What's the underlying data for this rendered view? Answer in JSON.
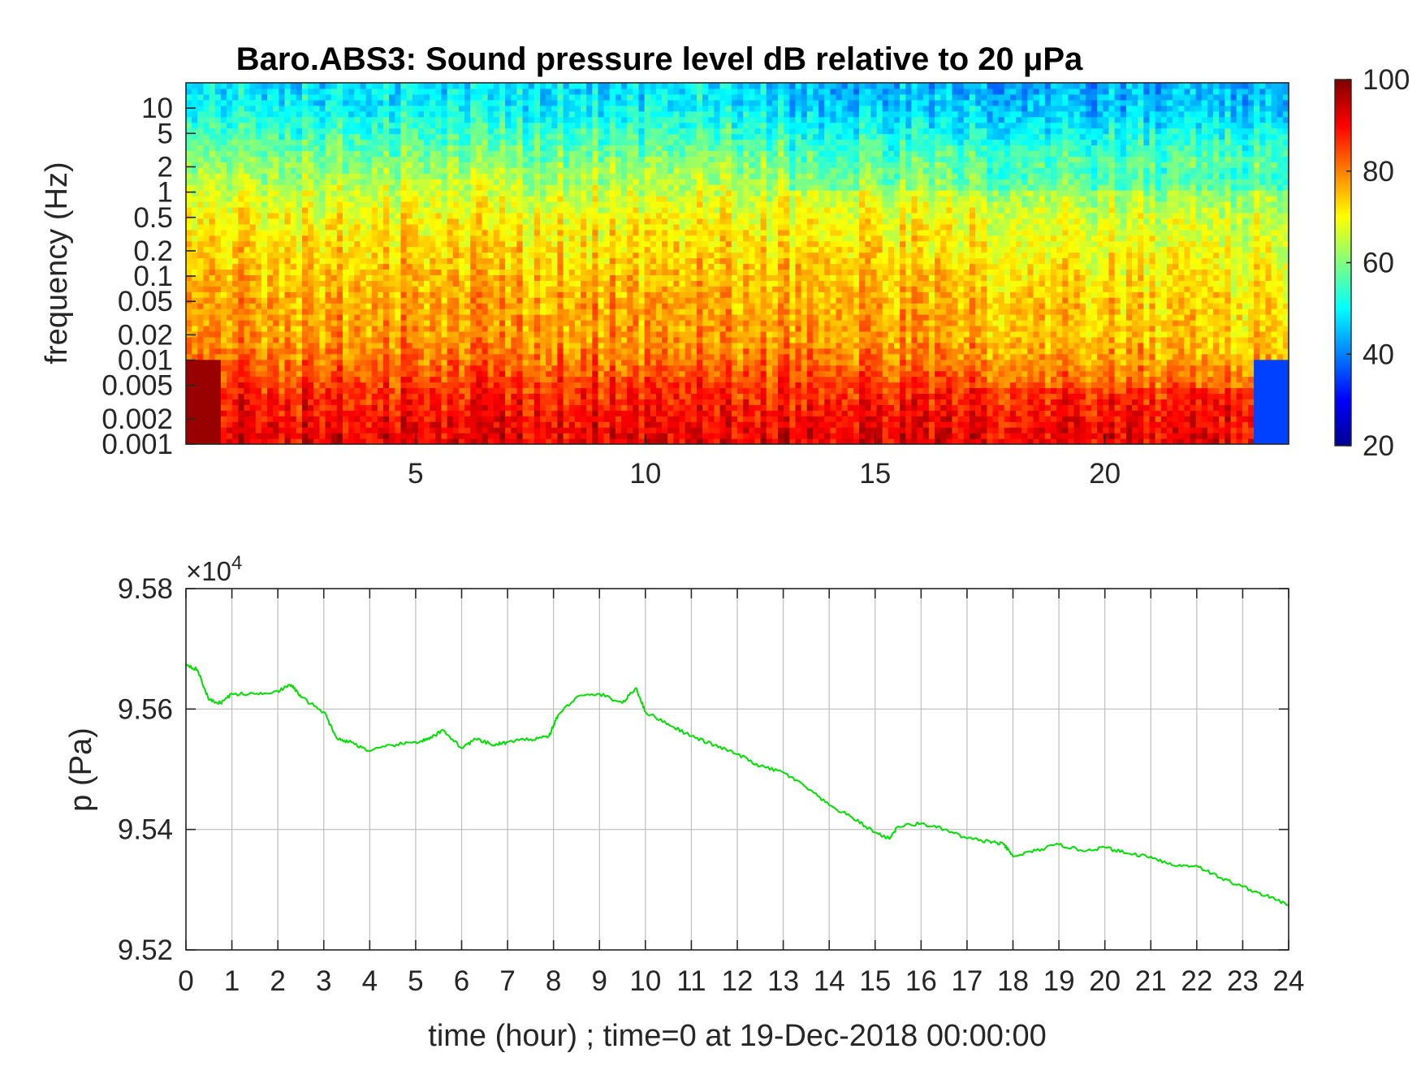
{
  "chart_data": [
    {
      "type": "heatmap",
      "title": "Baro.ABS3: Sound pressure level dB relative to 20 μPa",
      "ylabel": "frequency (Hz)",
      "xlabel": "",
      "y_scale": "log",
      "ylim": [
        0.001,
        20
      ],
      "xlim": [
        0,
        24
      ],
      "yticks": [
        0.001,
        0.002,
        0.005,
        0.01,
        0.02,
        0.05,
        0.1,
        0.2,
        0.5,
        1,
        2,
        5,
        10
      ],
      "yticklabels": [
        "0.001",
        "0.002",
        "0.005",
        "0.01",
        "0.02",
        "0.05",
        "0.1",
        "0.2",
        "0.5",
        "1",
        "2",
        "5",
        "10"
      ],
      "xticks": [
        5,
        10,
        15,
        20
      ],
      "xticklabels": [
        "5",
        "10",
        "15",
        "20"
      ],
      "colormap": "jet",
      "colorbar": {
        "range": [
          20,
          100
        ],
        "ticks": [
          20,
          40,
          60,
          80,
          100
        ],
        "ticklabels": [
          "20",
          "40",
          "60",
          "80",
          "100"
        ]
      },
      "level_profile": {
        "freq": [
          0.001,
          0.002,
          0.005,
          0.01,
          0.02,
          0.05,
          0.1,
          0.2,
          0.5,
          1,
          2,
          5,
          10,
          20
        ],
        "db": [
          92,
          90,
          86,
          81,
          78,
          77,
          75,
          73,
          70,
          66,
          62,
          55,
          50,
          48
        ]
      }
    },
    {
      "type": "line",
      "xlabel": "time (hour) ; time=0 at 19-Dec-2018 00:00:00",
      "ylabel": "p (Pa)",
      "exponent_label": "×10",
      "exponent_power": "4",
      "xlim": [
        0,
        24
      ],
      "ylim": [
        95200,
        95800
      ],
      "xticks": [
        0,
        1,
        2,
        3,
        4,
        5,
        6,
        7,
        8,
        9,
        10,
        11,
        12,
        13,
        14,
        15,
        16,
        17,
        18,
        19,
        20,
        21,
        22,
        23,
        24
      ],
      "xticklabels": [
        "0",
        "1",
        "2",
        "3",
        "4",
        "5",
        "6",
        "7",
        "8",
        "9",
        "10",
        "11",
        "12",
        "13",
        "14",
        "15",
        "16",
        "17",
        "18",
        "19",
        "20",
        "21",
        "22",
        "23",
        "24"
      ],
      "yticks": [
        95200,
        95400,
        95600,
        95800
      ],
      "yticklabels": [
        "9.52",
        "9.54",
        "9.56",
        "9.58"
      ],
      "grid": true,
      "series_color": "#00e000",
      "series": [
        {
          "x": [
            0,
            0.25,
            0.5,
            0.75,
            1,
            1.5,
            2,
            2.3,
            2.5,
            3,
            3.3,
            3.6,
            4,
            4.5,
            5,
            5.3,
            5.6,
            6,
            6.3,
            6.7,
            7,
            7.5,
            7.9,
            8.1,
            8.5,
            9,
            9.5,
            9.8,
            10,
            10.5,
            11,
            11.5,
            12,
            12.5,
            13,
            13.5,
            14,
            14.5,
            15,
            15.3,
            15.5,
            16,
            16.5,
            17,
            17.5,
            17.8,
            18,
            18.5,
            19,
            19.5,
            20,
            20.5,
            21,
            21.5,
            22,
            22.5,
            23,
            23.5,
            24
          ],
          "y": [
            95675,
            95665,
            95615,
            95610,
            95625,
            95625,
            95630,
            95640,
            95620,
            95595,
            95550,
            95545,
            95530,
            95540,
            95545,
            95550,
            95565,
            95535,
            95550,
            95540,
            95545,
            95550,
            95555,
            95590,
            95620,
            95625,
            95610,
            95635,
            95595,
            95575,
            95555,
            95540,
            95525,
            95505,
            95495,
            95470,
            95440,
            95420,
            95395,
            95385,
            95405,
            95410,
            95400,
            95385,
            95380,
            95375,
            95355,
            95365,
            95375,
            95365,
            95370,
            95360,
            95355,
            95340,
            95340,
            95320,
            95305,
            95290,
            95275
          ]
        }
      ]
    }
  ]
}
